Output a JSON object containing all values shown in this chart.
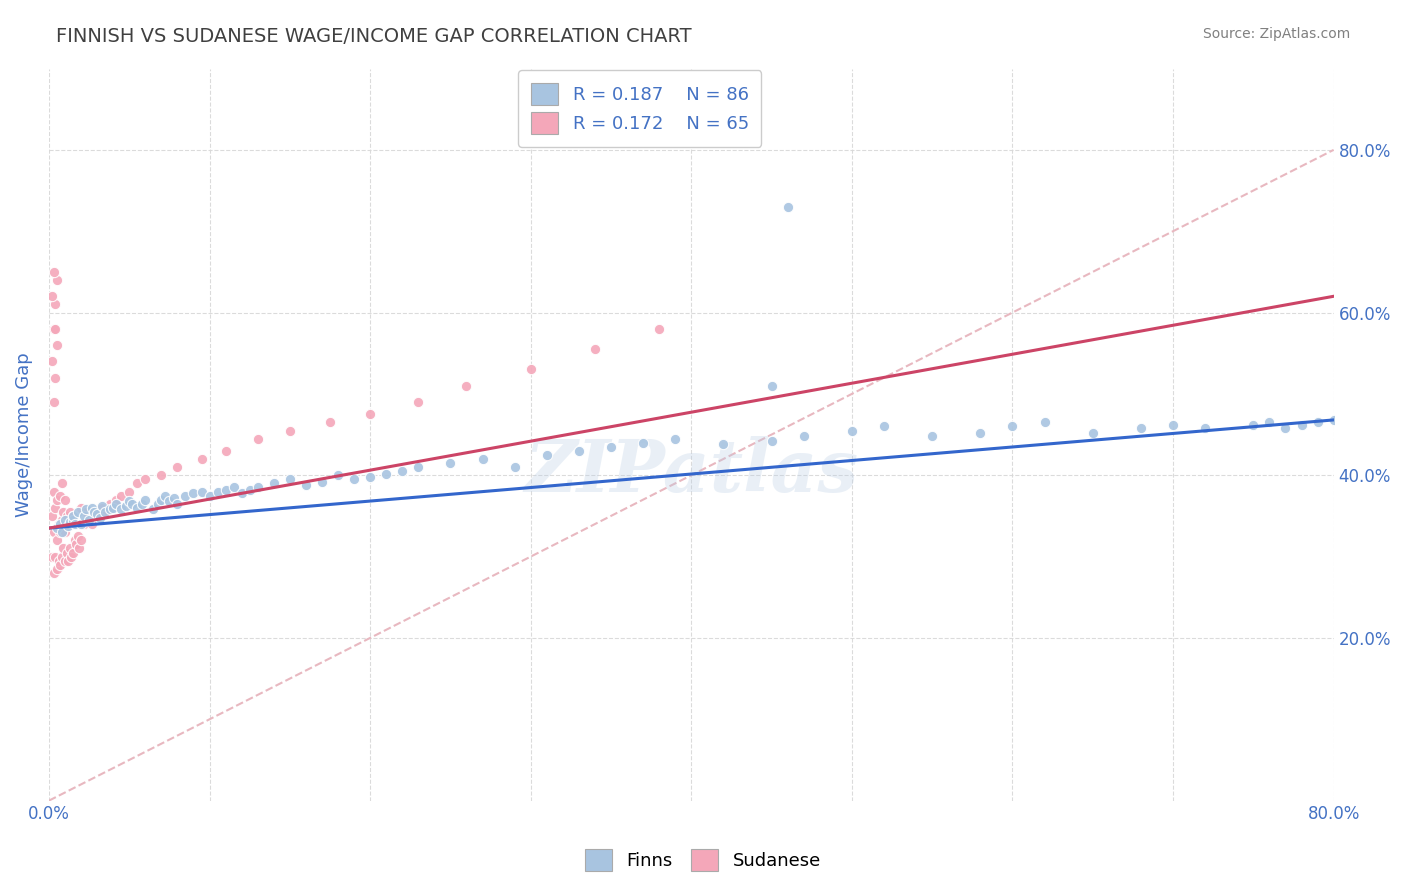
{
  "title": "FINNISH VS SUDANESE WAGE/INCOME GAP CORRELATION CHART",
  "source": "Source: ZipAtlas.com",
  "ylabel": "Wage/Income Gap",
  "x_min": 0.0,
  "x_max": 0.8,
  "y_min": 0.0,
  "y_max": 0.9,
  "y_ticks": [
    0.2,
    0.4,
    0.6,
    0.8
  ],
  "legend_r_finns": "R = 0.187",
  "legend_n_finns": "N = 86",
  "legend_r_sudanese": "R = 0.172",
  "legend_n_sudanese": "N = 65",
  "finns_color": "#a8c4e0",
  "sudanese_color": "#f4a7b9",
  "finns_line_color": "#3366cc",
  "sudanese_line_color": "#cc4466",
  "diagonal_color": "#e8b8c0",
  "watermark": "ZIPatlas",
  "title_color": "#404040",
  "axis_label_color": "#4472c4",
  "tick_color": "#4472c4",
  "grid_color": "#d8d8d8",
  "finns_x": [
    0.005,
    0.007,
    0.008,
    0.01,
    0.012,
    0.013,
    0.015,
    0.015,
    0.016,
    0.018,
    0.02,
    0.022,
    0.023,
    0.025,
    0.027,
    0.028,
    0.03,
    0.032,
    0.033,
    0.035,
    0.038,
    0.04,
    0.042,
    0.045,
    0.048,
    0.05,
    0.052,
    0.055,
    0.058,
    0.06,
    0.065,
    0.068,
    0.07,
    0.072,
    0.075,
    0.078,
    0.08,
    0.085,
    0.09,
    0.095,
    0.1,
    0.105,
    0.11,
    0.115,
    0.12,
    0.125,
    0.13,
    0.14,
    0.15,
    0.16,
    0.17,
    0.18,
    0.19,
    0.2,
    0.21,
    0.22,
    0.23,
    0.25,
    0.27,
    0.29,
    0.31,
    0.33,
    0.35,
    0.37,
    0.39,
    0.42,
    0.45,
    0.47,
    0.5,
    0.52,
    0.55,
    0.58,
    0.6,
    0.62,
    0.65,
    0.68,
    0.7,
    0.72,
    0.75,
    0.76,
    0.77,
    0.78,
    0.79,
    0.8,
    0.45,
    0.46
  ],
  "finns_y": [
    0.335,
    0.34,
    0.33,
    0.345,
    0.338,
    0.342,
    0.345,
    0.35,
    0.34,
    0.355,
    0.34,
    0.35,
    0.358,
    0.345,
    0.36,
    0.355,
    0.352,
    0.348,
    0.362,
    0.355,
    0.358,
    0.36,
    0.365,
    0.358,
    0.362,
    0.368,
    0.365,
    0.36,
    0.365,
    0.37,
    0.358,
    0.365,
    0.37,
    0.375,
    0.368,
    0.372,
    0.365,
    0.375,
    0.378,
    0.38,
    0.375,
    0.38,
    0.382,
    0.385,
    0.378,
    0.382,
    0.385,
    0.39,
    0.395,
    0.388,
    0.392,
    0.4,
    0.395,
    0.398,
    0.402,
    0.405,
    0.41,
    0.415,
    0.42,
    0.41,
    0.425,
    0.43,
    0.435,
    0.44,
    0.445,
    0.438,
    0.442,
    0.448,
    0.455,
    0.46,
    0.448,
    0.452,
    0.46,
    0.465,
    0.452,
    0.458,
    0.462,
    0.458,
    0.462,
    0.465,
    0.458,
    0.462,
    0.465,
    0.468,
    0.51,
    0.73
  ],
  "sudanese_x": [
    0.002,
    0.002,
    0.003,
    0.003,
    0.003,
    0.004,
    0.004,
    0.005,
    0.005,
    0.005,
    0.006,
    0.006,
    0.007,
    0.007,
    0.007,
    0.008,
    0.008,
    0.008,
    0.009,
    0.009,
    0.01,
    0.01,
    0.01,
    0.011,
    0.011,
    0.012,
    0.012,
    0.013,
    0.013,
    0.014,
    0.014,
    0.015,
    0.015,
    0.016,
    0.017,
    0.018,
    0.019,
    0.02,
    0.02,
    0.022,
    0.023,
    0.025,
    0.027,
    0.03,
    0.033,
    0.035,
    0.038,
    0.042,
    0.045,
    0.05,
    0.055,
    0.06,
    0.07,
    0.08,
    0.095,
    0.11,
    0.13,
    0.15,
    0.175,
    0.2,
    0.23,
    0.26,
    0.3,
    0.34,
    0.38
  ],
  "sudanese_y": [
    0.3,
    0.35,
    0.28,
    0.33,
    0.38,
    0.3,
    0.36,
    0.285,
    0.32,
    0.37,
    0.295,
    0.34,
    0.29,
    0.33,
    0.375,
    0.3,
    0.345,
    0.39,
    0.31,
    0.355,
    0.295,
    0.33,
    0.37,
    0.305,
    0.35,
    0.295,
    0.34,
    0.31,
    0.355,
    0.3,
    0.345,
    0.305,
    0.35,
    0.32,
    0.315,
    0.325,
    0.31,
    0.32,
    0.36,
    0.34,
    0.355,
    0.345,
    0.34,
    0.35,
    0.36,
    0.355,
    0.365,
    0.37,
    0.375,
    0.38,
    0.39,
    0.395,
    0.4,
    0.41,
    0.42,
    0.43,
    0.445,
    0.455,
    0.465,
    0.475,
    0.49,
    0.51,
    0.53,
    0.555,
    0.58
  ],
  "sudanese_extra_x": [
    0.002,
    0.003,
    0.004,
    0.005,
    0.002,
    0.003,
    0.004,
    0.005,
    0.003,
    0.004
  ],
  "sudanese_extra_y": [
    0.54,
    0.58,
    0.61,
    0.64,
    0.62,
    0.65,
    0.58,
    0.56,
    0.49,
    0.52
  ]
}
